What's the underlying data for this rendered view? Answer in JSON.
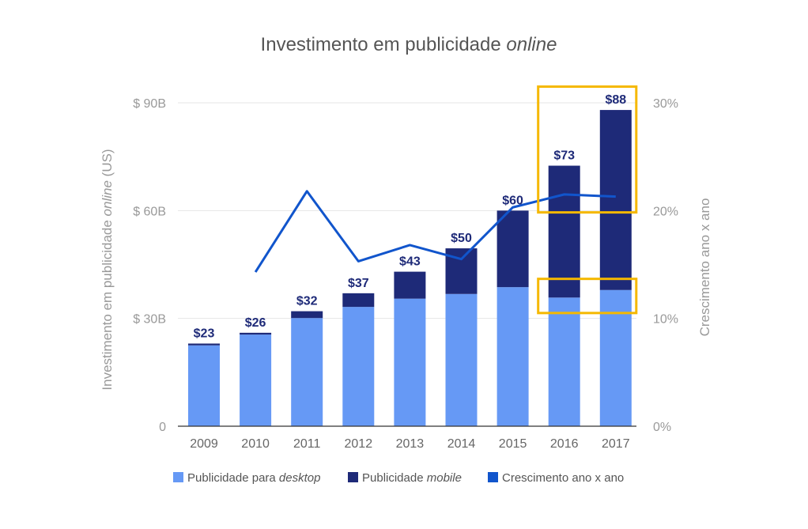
{
  "chart_data": {
    "type": "bar",
    "stacked": true,
    "title_main": "Investimento em publicidade ",
    "title_emph": "online",
    "ylabel_main": "Investimento em publicidade ",
    "ylabel_emph": "online",
    "ylabel_suffix": " (US)",
    "y2label": "Crescimento ano x ano",
    "categories": [
      "2009",
      "2010",
      "2011",
      "2012",
      "2013",
      "2014",
      "2015",
      "2016",
      "2017"
    ],
    "ylim": [
      0,
      90
    ],
    "y_ticks": [
      0,
      30,
      60,
      90
    ],
    "y_tick_labels": [
      "0",
      "$ 30B",
      "$ 60B",
      "$ 90B"
    ],
    "y2lim": [
      0,
      30
    ],
    "y2_ticks": [
      0,
      10,
      20,
      30
    ],
    "y2_tick_labels": [
      "0%",
      "10%",
      "20%",
      "30%"
    ],
    "grid": true,
    "series": [
      {
        "name_main": "Publicidade para ",
        "name_emph": "desktop",
        "color": "#6699f5",
        "values": [
          22.5,
          25.5,
          30.1,
          33.2,
          35.5,
          36.8,
          38.7,
          35.8,
          37.9
        ]
      },
      {
        "name_main": "Publicidade ",
        "name_emph": "mobile",
        "color": "#1e2a78",
        "values": [
          0.5,
          0.5,
          1.9,
          3.8,
          7.5,
          12.7,
          21.3,
          36.7,
          50.1
        ]
      }
    ],
    "line_series": {
      "name": "Crescimento ano x ano",
      "color": "#1155cc",
      "values": [
        null,
        14.3,
        21.8,
        15.3,
        16.8,
        15.5,
        20.3,
        21.5,
        21.3
      ]
    },
    "total_labels": [
      "$23",
      "$26",
      "$32",
      "$37",
      "$43",
      "$50",
      "$60",
      "$73",
      "$88"
    ],
    "highlights": [
      {
        "category_from": "2016",
        "category_to": "2017",
        "range": [
          59.5,
          94.5
        ],
        "color": "#f5b800"
      },
      {
        "category_from": "2016",
        "category_to": "2017",
        "range": [
          31.5,
          41.0
        ],
        "color": "#f5b800"
      }
    ]
  }
}
